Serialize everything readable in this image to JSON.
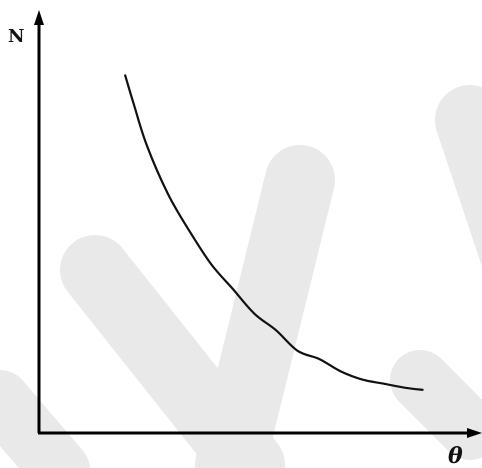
{
  "chart_data": {
    "type": "line",
    "title": "",
    "xlabel": "θ",
    "ylabel": "N",
    "grid": false,
    "legend": "none",
    "axis_ticks": false,
    "xlim": [
      0,
      100
    ],
    "ylim": [
      0,
      100
    ],
    "series": [
      {
        "name": "",
        "x": [
          20,
          22,
          25,
          30,
          35,
          40,
          45,
          50,
          55,
          60,
          65,
          70,
          75,
          80,
          85,
          89
        ],
        "y": [
          87,
          80,
          70,
          58,
          49,
          41,
          35,
          29,
          25,
          20,
          18,
          15,
          13,
          12,
          11,
          10.5
        ]
      }
    ],
    "colors": {
      "line": "#111111",
      "axis": "#000000",
      "watermark": "#e9e9e9"
    }
  }
}
